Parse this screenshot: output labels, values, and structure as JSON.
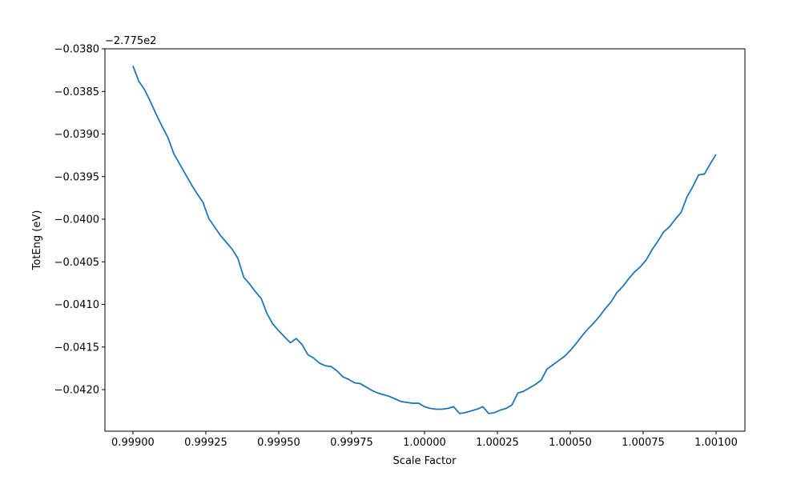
{
  "chart_data": {
    "type": "line",
    "xlabel": "Scale Factor",
    "ylabel": "TotEng (eV)",
    "y_offset_label": "−2.775e2",
    "x": [
      0.999,
      0.99902,
      0.99904,
      0.99906,
      0.99908,
      0.9991,
      0.99912,
      0.99914,
      0.99916,
      0.99918,
      0.9992,
      0.99922,
      0.99924,
      0.99926,
      0.99928,
      0.9993,
      0.99932,
      0.99934,
      0.99936,
      0.99938,
      0.9994,
      0.99942,
      0.99944,
      0.99946,
      0.99948,
      0.9995,
      0.99952,
      0.99954,
      0.99956,
      0.99958,
      0.9996,
      0.99962,
      0.99964,
      0.99966,
      0.99968,
      0.9997,
      0.99972,
      0.99974,
      0.99976,
      0.99978,
      0.9998,
      0.99982,
      0.99984,
      0.99986,
      0.99988,
      0.9999,
      0.99992,
      0.99994,
      0.99996,
      0.99998,
      1.0,
      1.00002,
      1.00004,
      1.00006,
      1.00008,
      1.0001,
      1.00012,
      1.00014,
      1.00016,
      1.00018,
      1.0002,
      1.00022,
      1.00024,
      1.00026,
      1.00028,
      1.0003,
      1.00032,
      1.00034,
      1.00036,
      1.00038,
      1.0004,
      1.00042,
      1.00044,
      1.00046,
      1.00048,
      1.0005,
      1.00052,
      1.00054,
      1.00056,
      1.00058,
      1.0006,
      1.00062,
      1.00064,
      1.00066,
      1.00068,
      1.0007,
      1.00072,
      1.00074,
      1.00076,
      1.00078,
      1.0008,
      1.00082,
      1.00084,
      1.00086,
      1.00088,
      1.0009,
      1.00092,
      1.00094,
      1.00096,
      1.00098,
      1.001
    ],
    "series": [
      {
        "color": "#1f77b4",
        "values": [
          -0.0382,
          -0.03838,
          -0.03848,
          -0.03862,
          -0.03877,
          -0.03891,
          -0.03904,
          -0.03923,
          -0.03935,
          -0.03947,
          -0.03959,
          -0.0397,
          -0.0398,
          -0.03999,
          -0.04009,
          -0.04019,
          -0.04027,
          -0.04035,
          -0.04046,
          -0.04068,
          -0.04076,
          -0.04085,
          -0.04093,
          -0.04111,
          -0.04123,
          -0.04131,
          -0.04138,
          -0.04145,
          -0.0414,
          -0.04147,
          -0.04159,
          -0.04163,
          -0.04169,
          -0.04172,
          -0.04173,
          -0.04178,
          -0.04185,
          -0.04188,
          -0.04192,
          -0.04193,
          -0.04197,
          -0.04201,
          -0.04204,
          -0.04206,
          -0.04208,
          -0.04211,
          -0.04214,
          -0.04215,
          -0.04216,
          -0.04216,
          -0.0422,
          -0.04222,
          -0.04223,
          -0.04223,
          -0.04222,
          -0.0422,
          -0.04228,
          -0.04227,
          -0.04225,
          -0.04223,
          -0.0422,
          -0.04228,
          -0.04227,
          -0.04224,
          -0.04222,
          -0.04218,
          -0.04204,
          -0.04202,
          -0.04198,
          -0.04194,
          -0.04189,
          -0.04176,
          -0.04171,
          -0.04166,
          -0.04161,
          -0.04154,
          -0.04146,
          -0.04137,
          -0.04129,
          -0.04122,
          -0.04114,
          -0.04105,
          -0.04097,
          -0.04086,
          -0.04079,
          -0.0407,
          -0.04062,
          -0.04056,
          -0.04048,
          -0.04036,
          -0.04026,
          -0.04015,
          -0.04009,
          -0.04,
          -0.03992,
          -0.03974,
          -0.03962,
          -0.03948,
          -0.03947,
          -0.03935,
          -0.03924
        ]
      }
    ],
    "xlim": [
      0.998904,
      1.001099
    ],
    "xticks": [
      {
        "value": 0.999,
        "label": "0.99900"
      },
      {
        "value": 0.99925,
        "label": "0.99925"
      },
      {
        "value": 0.9995,
        "label": "0.99950"
      },
      {
        "value": 0.99975,
        "label": "0.99975"
      },
      {
        "value": 1.0,
        "label": "1.00000"
      },
      {
        "value": 1.00025,
        "label": "1.00025"
      },
      {
        "value": 1.0005,
        "label": "1.00050"
      },
      {
        "value": 1.00075,
        "label": "1.00075"
      },
      {
        "value": 1.001,
        "label": "1.00100"
      }
    ],
    "ylim": [
      -0.042488,
      -0.038
    ],
    "yticks": [
      {
        "value": -0.038,
        "label": "−0.0380"
      },
      {
        "value": -0.0385,
        "label": "−0.0385"
      },
      {
        "value": -0.039,
        "label": "−0.0390"
      },
      {
        "value": -0.0395,
        "label": "−0.0395"
      },
      {
        "value": -0.04,
        "label": "−0.0400"
      },
      {
        "value": -0.0405,
        "label": "−0.0405"
      },
      {
        "value": -0.041,
        "label": "−0.0410"
      },
      {
        "value": -0.0415,
        "label": "−0.0415"
      },
      {
        "value": -0.042,
        "label": "−0.0420"
      }
    ],
    "grid": false
  }
}
